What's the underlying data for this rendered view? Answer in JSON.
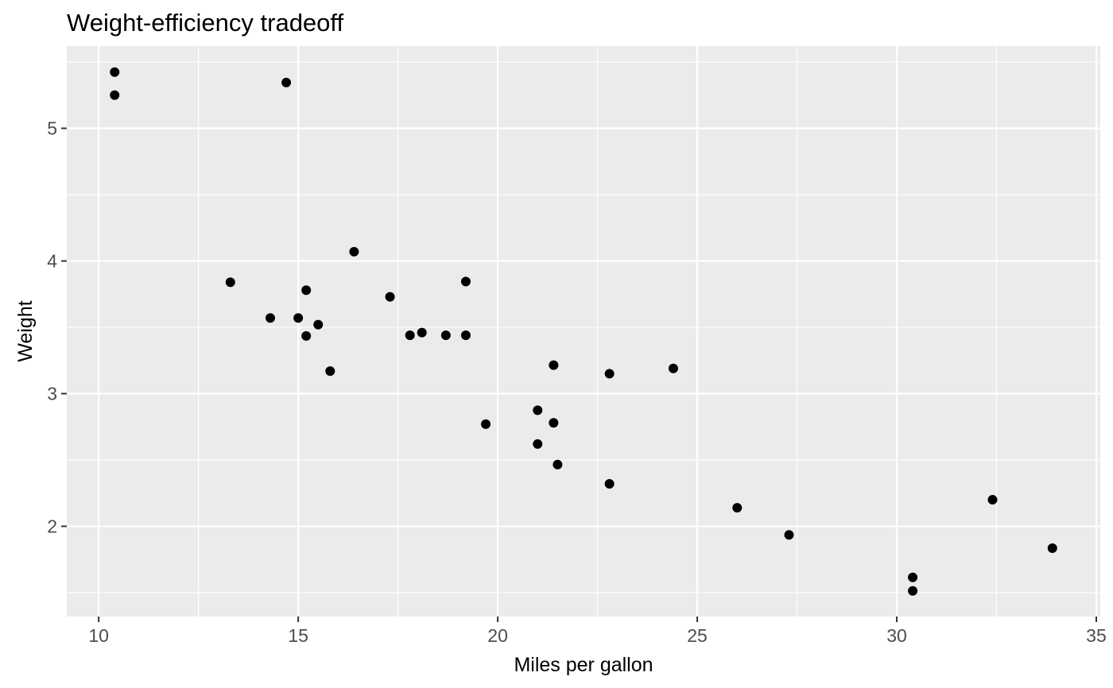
{
  "chart_data": {
    "type": "scatter",
    "title": "Weight-efficiency tradeoff",
    "xlabel": "Miles per gallon",
    "ylabel": "Weight",
    "xlim": [
      9.2,
      35.1
    ],
    "ylim": [
      1.32,
      5.62
    ],
    "x_ticks": [
      10,
      15,
      20,
      25,
      30,
      35
    ],
    "x_tick_labels": [
      "10",
      "15",
      "20",
      "25",
      "30",
      "35"
    ],
    "x_minor_ticks": [
      12.5,
      17.5,
      22.5,
      27.5,
      32.5
    ],
    "y_ticks": [
      2,
      3,
      4,
      5
    ],
    "y_tick_labels": [
      "2",
      "3",
      "4",
      "5"
    ],
    "y_minor_ticks": [
      1.5,
      2.5,
      3.5,
      4.5,
      5.5
    ],
    "grid": true,
    "background": "#ebebeb",
    "point_color": "#000000",
    "points": [
      {
        "x": 21.0,
        "y": 2.62
      },
      {
        "x": 21.0,
        "y": 2.875
      },
      {
        "x": 22.8,
        "y": 2.32
      },
      {
        "x": 21.4,
        "y": 3.215
      },
      {
        "x": 18.7,
        "y": 3.44
      },
      {
        "x": 18.1,
        "y": 3.46
      },
      {
        "x": 14.3,
        "y": 3.57
      },
      {
        "x": 24.4,
        "y": 3.19
      },
      {
        "x": 22.8,
        "y": 3.15
      },
      {
        "x": 19.2,
        "y": 3.44
      },
      {
        "x": 17.8,
        "y": 3.44
      },
      {
        "x": 16.4,
        "y": 4.07
      },
      {
        "x": 17.3,
        "y": 3.73
      },
      {
        "x": 15.2,
        "y": 3.78
      },
      {
        "x": 10.4,
        "y": 5.25
      },
      {
        "x": 10.4,
        "y": 5.424
      },
      {
        "x": 14.7,
        "y": 5.345
      },
      {
        "x": 32.4,
        "y": 2.2
      },
      {
        "x": 30.4,
        "y": 1.615
      },
      {
        "x": 33.9,
        "y": 1.835
      },
      {
        "x": 21.5,
        "y": 2.465
      },
      {
        "x": 15.5,
        "y": 3.52
      },
      {
        "x": 15.2,
        "y": 3.435
      },
      {
        "x": 13.3,
        "y": 3.84
      },
      {
        "x": 19.2,
        "y": 3.845
      },
      {
        "x": 27.3,
        "y": 1.935
      },
      {
        "x": 26.0,
        "y": 2.14
      },
      {
        "x": 30.4,
        "y": 1.513
      },
      {
        "x": 15.8,
        "y": 3.17
      },
      {
        "x": 19.7,
        "y": 2.77
      },
      {
        "x": 15.0,
        "y": 3.57
      },
      {
        "x": 21.4,
        "y": 2.78
      }
    ]
  }
}
